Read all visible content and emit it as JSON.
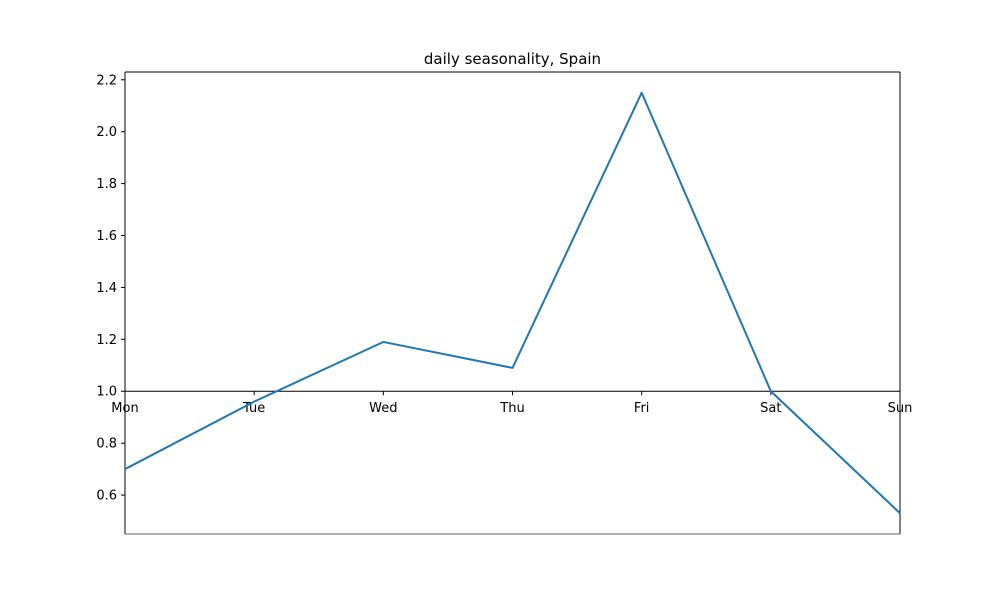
{
  "chart_data": {
    "type": "line",
    "title": "daily seasonality, Spain",
    "xlabel": "",
    "ylabel": "",
    "categories": [
      "Mon",
      "Tue",
      "Wed",
      "Thu",
      "Fri",
      "Sat",
      "Sun"
    ],
    "series": [
      {
        "values": [
          0.7,
          0.96,
          1.19,
          1.09,
          2.15,
          1.0,
          0.53
        ],
        "color": "#1f77b4"
      }
    ],
    "ylim": [
      0.45,
      2.23
    ],
    "yticks": [
      0.6,
      0.8,
      1.0,
      1.2,
      1.4,
      1.6,
      1.8,
      2.0,
      2.2
    ],
    "ytick_labels": [
      "0.6",
      "0.8",
      "1.0",
      "1.2",
      "1.4",
      "1.6",
      "1.8",
      "2.0",
      "2.2"
    ],
    "x_axis_crosses_y_at": 1.0,
    "grid": false,
    "legend": "none"
  }
}
